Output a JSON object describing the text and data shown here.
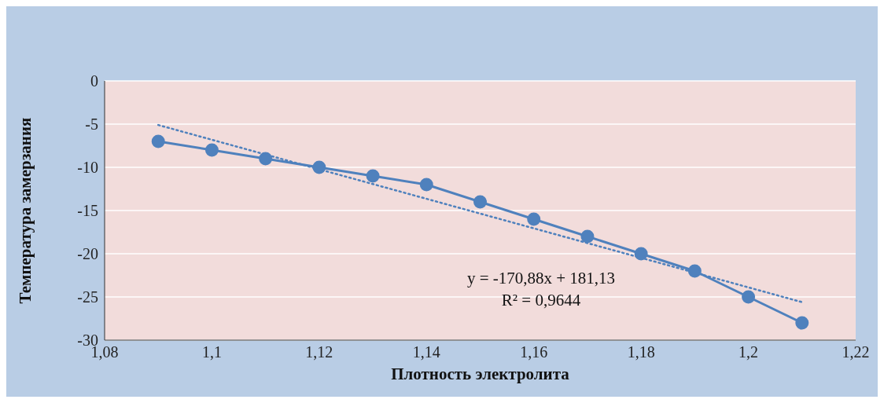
{
  "chart_data": {
    "type": "line",
    "xlabel": "Плотность электролита",
    "ylabel": "Температура замерзания",
    "xlim": [
      1.08,
      1.22
    ],
    "xticks": [
      {
        "value": 1.08,
        "label": "1,08"
      },
      {
        "value": 1.1,
        "label": "1,1"
      },
      {
        "value": 1.12,
        "label": "1,12"
      },
      {
        "value": 1.14,
        "label": "1,14"
      },
      {
        "value": 1.16,
        "label": "1,16"
      },
      {
        "value": 1.18,
        "label": "1,18"
      },
      {
        "value": 1.2,
        "label": "1,2"
      },
      {
        "value": 1.22,
        "label": "1,22"
      }
    ],
    "ylim": [
      -30,
      0
    ],
    "yticks": [
      -30,
      -25,
      -20,
      -15,
      -10,
      -5,
      0
    ],
    "grid": "y",
    "x": [
      1.09,
      1.1,
      1.11,
      1.12,
      1.13,
      1.14,
      1.15,
      1.16,
      1.17,
      1.18,
      1.19,
      1.2,
      1.21
    ],
    "series": [
      {
        "color": "#4f81bd",
        "marker": "circle",
        "line_style": "solid",
        "values": [
          -7,
          -8,
          -9,
          -10,
          -11,
          -12,
          -14,
          -16,
          -18,
          -20,
          -22,
          -25,
          -28
        ]
      },
      {
        "color": "#4f81bd",
        "marker": "none",
        "line_style": "dotted",
        "x": [
          1.09,
          1.21
        ],
        "values": [
          -5.1,
          -25.6
        ]
      }
    ],
    "annotations": [
      "y = -170,88x + 181,13",
      "R² = 0,9644"
    ]
  }
}
